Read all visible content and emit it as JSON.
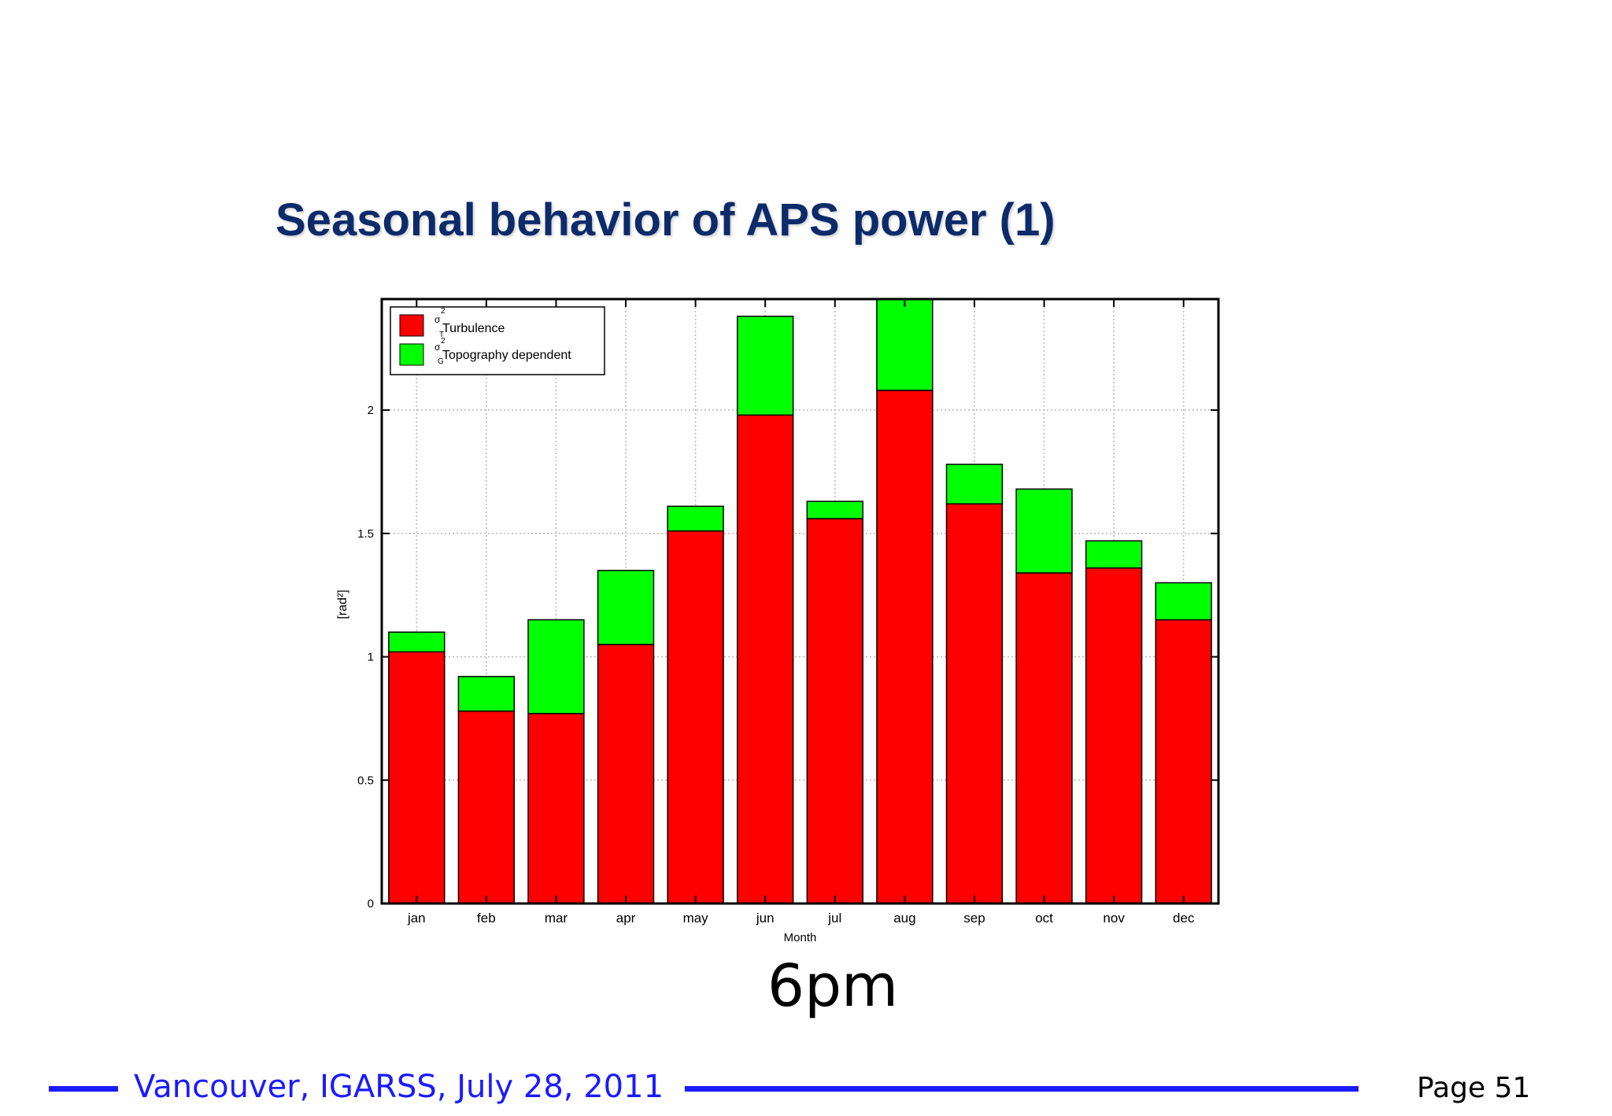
{
  "slide": {
    "title": "Seasonal behavior of APS power (1)",
    "caption": "6pm",
    "footer": "Vancouver, IGARSS, July 28, 2011",
    "page": "Page 51",
    "accent_color": "#1a1aff",
    "title_color": "#0d2b6b"
  },
  "chart_data": {
    "type": "bar",
    "stacked": true,
    "categories": [
      "jan",
      "feb",
      "mar",
      "apr",
      "may",
      "jun",
      "jul",
      "aug",
      "sep",
      "oct",
      "nov",
      "dec"
    ],
    "series": [
      {
        "name": "σ²_turbulence",
        "color": "#ff0000",
        "values": [
          1.02,
          0.78,
          0.77,
          1.05,
          1.51,
          1.98,
          1.56,
          2.08,
          1.62,
          1.34,
          1.36,
          1.15
        ]
      },
      {
        "name": "σ²_Topography dependent",
        "color": "#00ff00",
        "values": [
          0.08,
          0.14,
          0.38,
          0.3,
          0.1,
          0.4,
          0.07,
          0.37,
          0.16,
          0.34,
          0.11,
          0.15
        ]
      }
    ],
    "legend_labels": {
      "red": "Turbulence",
      "green": "Topography dependent",
      "symbol": "σ",
      "sup": "2",
      "red_sub": "T",
      "green_sub": "G"
    },
    "xlabel": "Month",
    "ylabel": "[rad²]",
    "ylim": [
      0,
      2.45
    ],
    "yticks": [
      0,
      0.5,
      1,
      1.5,
      2
    ],
    "ytick_labels": [
      "0",
      "0.5",
      "1",
      "1.5",
      "2"
    ],
    "grid": true,
    "legend_position": "top-left"
  }
}
